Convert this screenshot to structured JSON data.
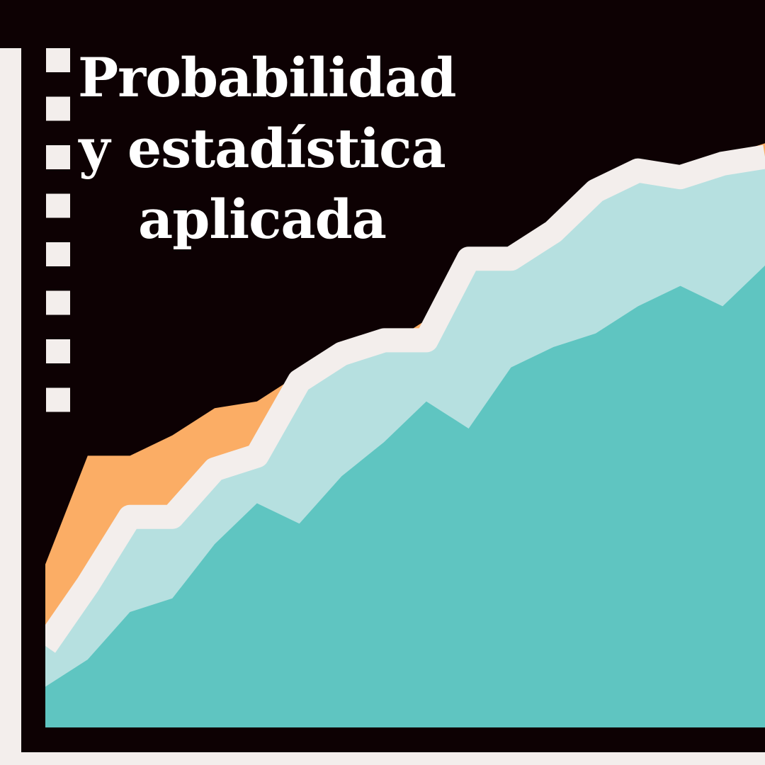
{
  "title": {
    "lines": [
      "Probabilidad",
      "y estadística",
      "aplicada"
    ]
  },
  "colors": {
    "background": "#0d0103",
    "frame": "#f3eeec",
    "orange_area": "#fbad65",
    "light_teal_area": "#b6e0e0",
    "teal_area": "#5fc5c1",
    "divider_line": "#f3eeec",
    "title_text": "#ffffff"
  },
  "chart_data": {
    "type": "area",
    "x": [
      0,
      1,
      2,
      3,
      4,
      5,
      6,
      7,
      8,
      9,
      10,
      11,
      12,
      13,
      14,
      15,
      16,
      17
    ],
    "series": [
      {
        "values": [
          6,
          10,
          17,
          19,
          27,
          33,
          30,
          37,
          42,
          48,
          44,
          53,
          56,
          58,
          62,
          65,
          62,
          68
        ]
      },
      {
        "values": [
          12,
          21,
          31,
          31,
          38,
          40,
          51,
          55,
          57,
          57,
          69,
          69,
          73,
          79,
          82,
          81,
          83,
          84
        ]
      },
      {
        "values": [
          24,
          40,
          40,
          43,
          47,
          48,
          52,
          53,
          56,
          60,
          63,
          68,
          71,
          75,
          80,
          82,
          84,
          86
        ]
      }
    ],
    "ylim": [
      0,
      100
    ],
    "grid": false,
    "legend": "none"
  }
}
